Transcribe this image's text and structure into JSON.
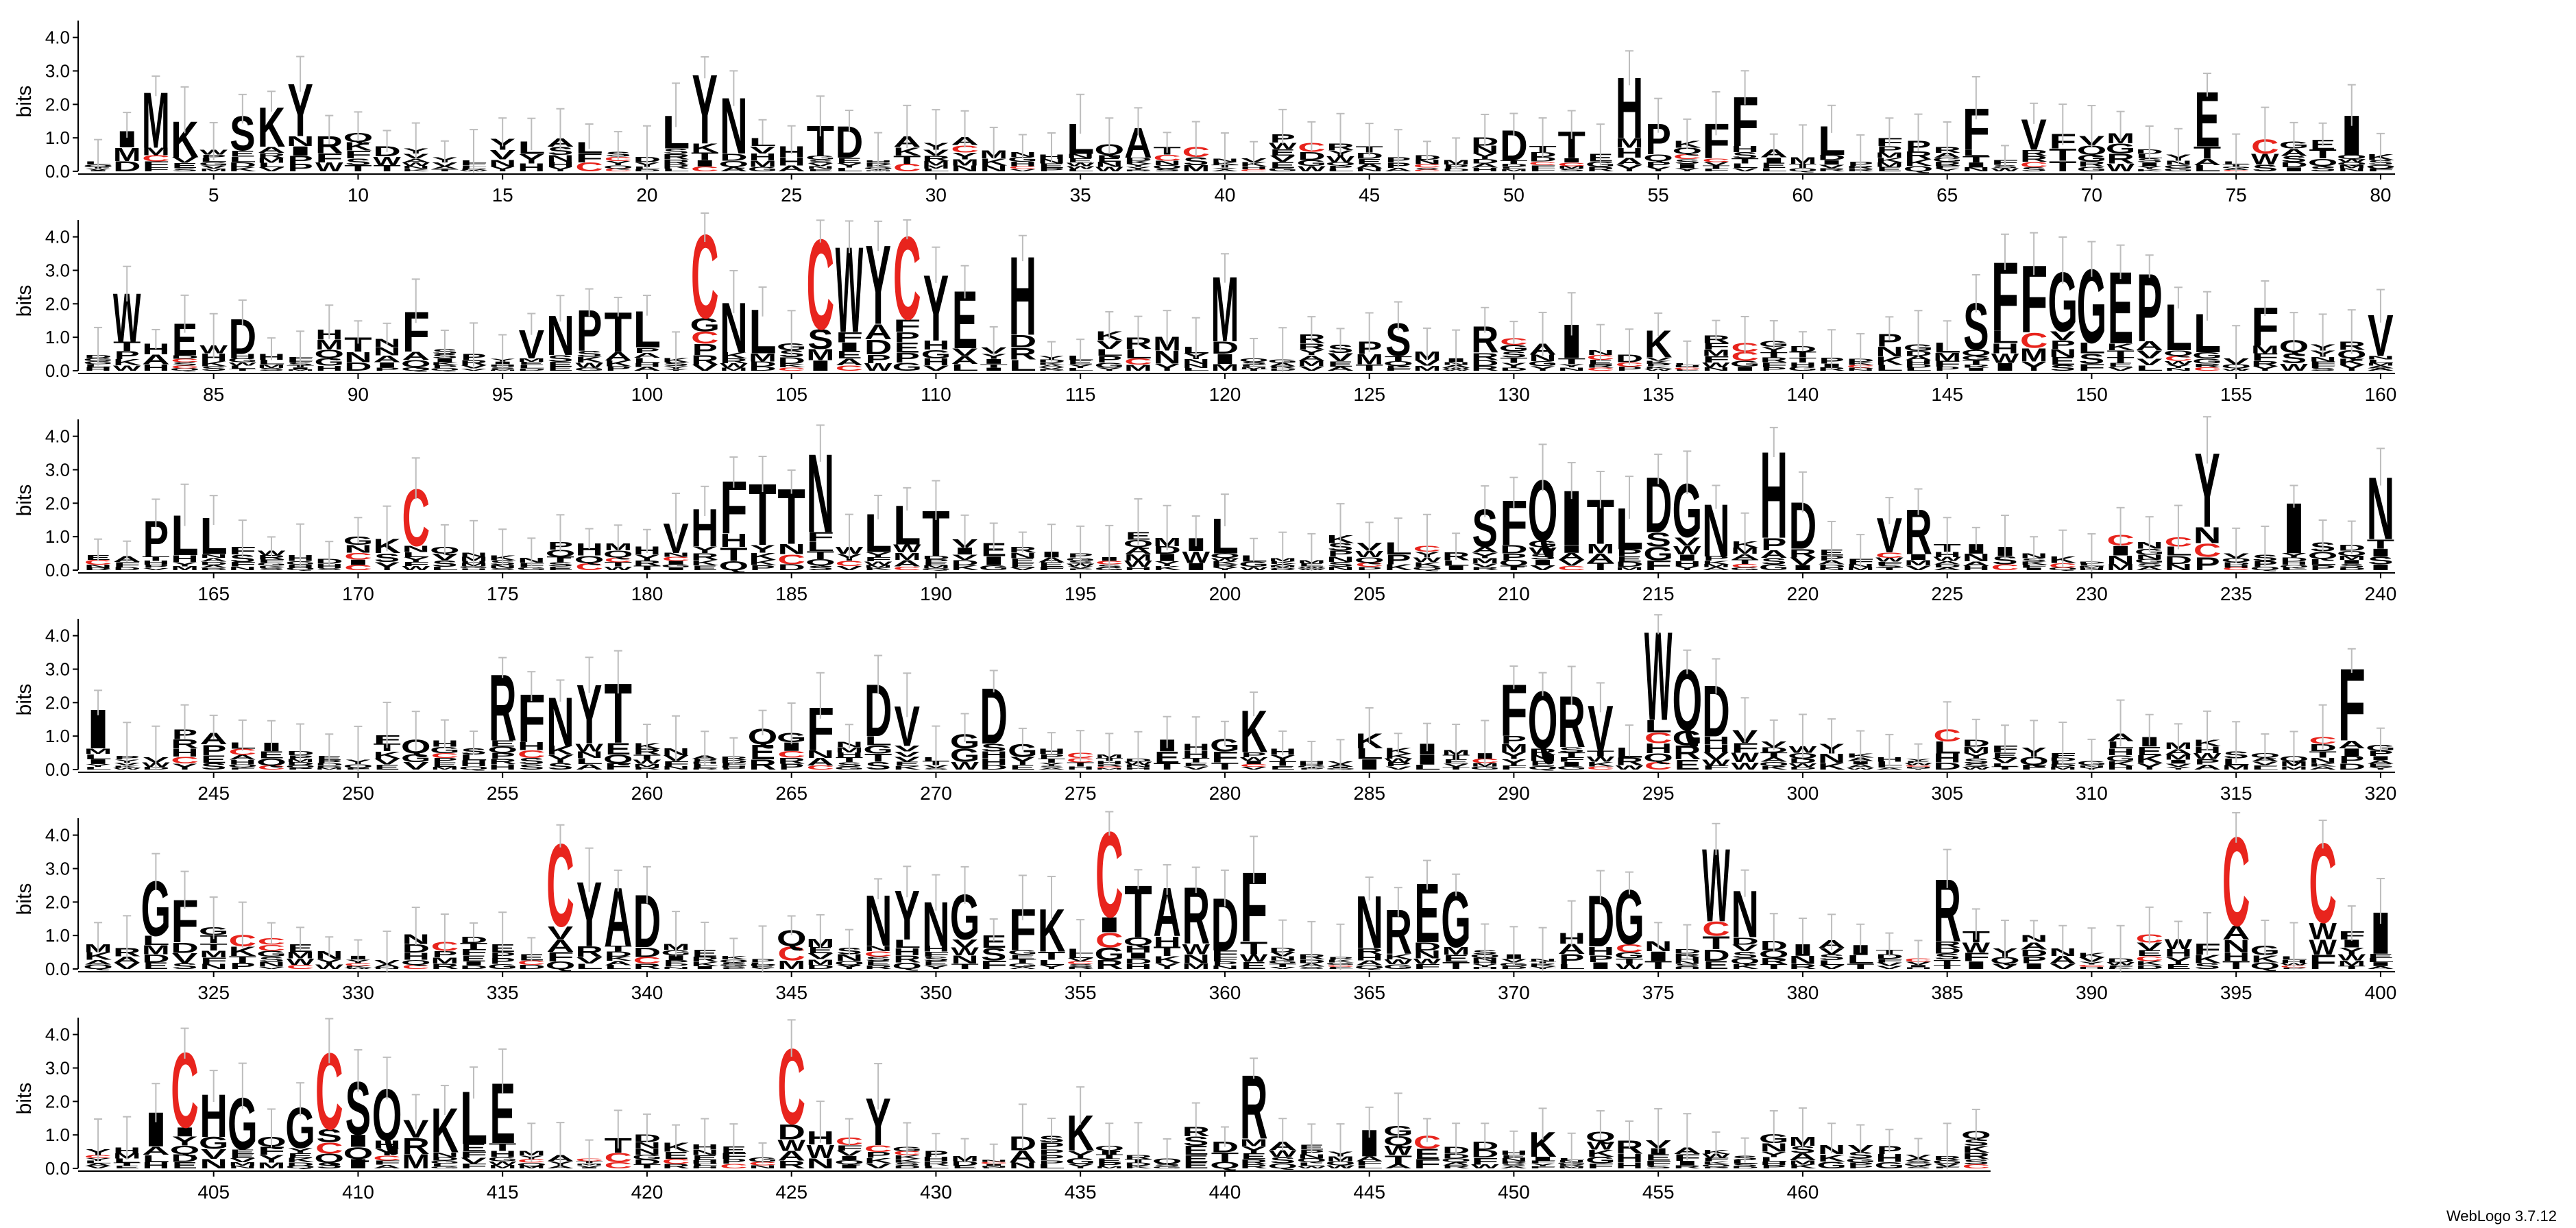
{
  "chart_data": {
    "type": "sequence-logo",
    "ylabel": "bits",
    "ylim": [
      0,
      4.3
    ],
    "yticks": [
      "0.0",
      "1.0",
      "2.0",
      "3.0",
      "4.0"
    ],
    "credit": "WebLogo 3.7.12",
    "colors": {
      "cysteine": "#e8241d",
      "default": "#000000",
      "errorbar": "#bdbdbd"
    },
    "positions": {
      "count": 466,
      "x_tick_step": 5
    },
    "rows": [
      {
        "start": 1,
        "end": 80,
        "xticks": [
          5,
          10,
          15,
          20,
          25,
          30,
          35,
          40,
          45,
          50,
          55,
          60,
          65,
          70,
          75,
          80
        ]
      },
      {
        "start": 81,
        "end": 160,
        "xticks": [
          85,
          90,
          95,
          100,
          105,
          110,
          115,
          120,
          125,
          130,
          135,
          140,
          145,
          150,
          155,
          160
        ]
      },
      {
        "start": 161,
        "end": 240,
        "xticks": [
          165,
          170,
          175,
          180,
          185,
          190,
          195,
          200,
          205,
          210,
          215,
          220,
          225,
          230,
          235,
          240
        ]
      },
      {
        "start": 241,
        "end": 320,
        "xticks": [
          245,
          250,
          255,
          260,
          265,
          270,
          275,
          280,
          285,
          290,
          295,
          300,
          305,
          310,
          315,
          320
        ]
      },
      {
        "start": 321,
        "end": 400,
        "xticks": [
          325,
          330,
          335,
          340,
          345,
          350,
          355,
          360,
          365,
          370,
          375,
          380,
          385,
          390,
          395,
          400
        ]
      },
      {
        "start": 401,
        "end": 466,
        "xticks": [
          405,
          410,
          415,
          420,
          425,
          430,
          435,
          440,
          445,
          450,
          455,
          460
        ]
      }
    ],
    "prominent_residues": [
      {
        "pos": 3,
        "letter": "M",
        "bits": 2.4
      },
      {
        "pos": 4,
        "letter": "K",
        "bits": 1.6
      },
      {
        "pos": 6,
        "letter": "S",
        "bits": 1.6
      },
      {
        "pos": 7,
        "letter": "K",
        "bits": 1.9
      },
      {
        "pos": 8,
        "letter": "Y",
        "bits": 2.6
      },
      {
        "pos": 21,
        "letter": "L",
        "bits": 1.6
      },
      {
        "pos": 22,
        "letter": "Y",
        "bits": 2.9
      },
      {
        "pos": 23,
        "letter": "N",
        "bits": 2.4
      },
      {
        "pos": 26,
        "letter": "T",
        "bits": 1.4
      },
      {
        "pos": 27,
        "letter": "D",
        "bits": 1.5
      },
      {
        "pos": 35,
        "letter": "L",
        "bits": 1.5
      },
      {
        "pos": 37,
        "letter": "A",
        "bits": 1.3
      },
      {
        "pos": 50,
        "letter": "D",
        "bits": 1.3
      },
      {
        "pos": 52,
        "letter": "T",
        "bits": 1.2
      },
      {
        "pos": 54,
        "letter": "H",
        "bits": 2.9
      },
      {
        "pos": 55,
        "letter": "P",
        "bits": 1.5
      },
      {
        "pos": 57,
        "letter": "F",
        "bits": 1.5
      },
      {
        "pos": 58,
        "letter": "F",
        "bits": 2.2
      },
      {
        "pos": 61,
        "letter": "L",
        "bits": 1.4
      },
      {
        "pos": 66,
        "letter": "F",
        "bits": 1.9
      },
      {
        "pos": 68,
        "letter": "V",
        "bits": 1.5
      },
      {
        "pos": 74,
        "letter": "E",
        "bits": 2.6
      },
      {
        "pos": 79,
        "letter": "I",
        "bits": 1.8
      },
      {
        "pos": 82,
        "letter": "W",
        "bits": 2.4
      },
      {
        "pos": 84,
        "letter": "E",
        "bits": 1.4
      },
      {
        "pos": 86,
        "letter": "D",
        "bits": 1.6
      },
      {
        "pos": 92,
        "letter": "F",
        "bits": 1.8
      },
      {
        "pos": 96,
        "letter": "V",
        "bits": 1.2
      },
      {
        "pos": 97,
        "letter": "N",
        "bits": 1.7
      },
      {
        "pos": 98,
        "letter": "P",
        "bits": 1.8
      },
      {
        "pos": 99,
        "letter": "T",
        "bits": 1.8
      },
      {
        "pos": 100,
        "letter": "L",
        "bits": 1.7
      },
      {
        "pos": 102,
        "letter": "C",
        "bits": 4.1
      },
      {
        "pos": 103,
        "letter": "N",
        "bits": 2.1
      },
      {
        "pos": 104,
        "letter": "L",
        "bits": 1.9
      },
      {
        "pos": 106,
        "letter": "C",
        "bits": 4.1
      },
      {
        "pos": 107,
        "letter": "W",
        "bits": 4.0
      },
      {
        "pos": 108,
        "letter": "Y",
        "bits": 3.8
      },
      {
        "pos": 109,
        "letter": "C",
        "bits": 4.1
      },
      {
        "pos": 110,
        "letter": "Y",
        "bits": 2.8
      },
      {
        "pos": 111,
        "letter": "E",
        "bits": 2.5
      },
      {
        "pos": 113,
        "letter": "H",
        "bits": 3.6
      },
      {
        "pos": 120,
        "letter": "M",
        "bits": 3.0
      },
      {
        "pos": 126,
        "letter": "S",
        "bits": 1.5
      },
      {
        "pos": 129,
        "letter": "R",
        "bits": 1.3
      },
      {
        "pos": 132,
        "letter": "I",
        "bits": 1.5
      },
      {
        "pos": 135,
        "letter": "K",
        "bits": 1.3
      },
      {
        "pos": 146,
        "letter": "S",
        "bits": 2.1
      },
      {
        "pos": 147,
        "letter": "F",
        "bits": 3.2
      },
      {
        "pos": 148,
        "letter": "F",
        "bits": 3.2
      },
      {
        "pos": 149,
        "letter": "G",
        "bits": 2.9
      },
      {
        "pos": 150,
        "letter": "G",
        "bits": 3.1
      },
      {
        "pos": 151,
        "letter": "E",
        "bits": 3.1
      },
      {
        "pos": 152,
        "letter": "P",
        "bits": 3.0
      },
      {
        "pos": 153,
        "letter": "L",
        "bits": 2.1
      },
      {
        "pos": 154,
        "letter": "L",
        "bits": 1.8
      },
      {
        "pos": 156,
        "letter": "F",
        "bits": 1.9
      },
      {
        "pos": 160,
        "letter": "V",
        "bits": 1.9
      },
      {
        "pos": 163,
        "letter": "P",
        "bits": 1.5
      },
      {
        "pos": 164,
        "letter": "L",
        "bits": 1.7
      },
      {
        "pos": 165,
        "letter": "L",
        "bits": 1.6
      },
      {
        "pos": 172,
        "letter": "C",
        "bits": 2.5
      },
      {
        "pos": 181,
        "letter": "V",
        "bits": 1.4
      },
      {
        "pos": 182,
        "letter": "H",
        "bits": 1.8
      },
      {
        "pos": 183,
        "letter": "F",
        "bits": 2.6
      },
      {
        "pos": 184,
        "letter": "T",
        "bits": 2.6
      },
      {
        "pos": 185,
        "letter": "T",
        "bits": 2.4
      },
      {
        "pos": 186,
        "letter": "N",
        "bits": 3.5
      },
      {
        "pos": 188,
        "letter": "L",
        "bits": 1.8
      },
      {
        "pos": 189,
        "letter": "L",
        "bits": 1.9
      },
      {
        "pos": 190,
        "letter": "T",
        "bits": 1.9
      },
      {
        "pos": 200,
        "letter": "L",
        "bits": 1.6
      },
      {
        "pos": 209,
        "letter": "S",
        "bits": 1.8
      },
      {
        "pos": 210,
        "letter": "F",
        "bits": 2.2
      },
      {
        "pos": 211,
        "letter": "Q",
        "bits": 2.6
      },
      {
        "pos": 212,
        "letter": "I",
        "bits": 2.4
      },
      {
        "pos": 213,
        "letter": "T",
        "bits": 2.0
      },
      {
        "pos": 214,
        "letter": "L",
        "bits": 1.9
      },
      {
        "pos": 215,
        "letter": "D",
        "bits": 2.6
      },
      {
        "pos": 216,
        "letter": "G",
        "bits": 2.6
      },
      {
        "pos": 217,
        "letter": "N",
        "bits": 2.2
      },
      {
        "pos": 219,
        "letter": "H",
        "bits": 3.8
      },
      {
        "pos": 220,
        "letter": "D",
        "bits": 2.1
      },
      {
        "pos": 223,
        "letter": "V",
        "bits": 1.7
      },
      {
        "pos": 224,
        "letter": "R",
        "bits": 1.9
      },
      {
        "pos": 234,
        "letter": "Y",
        "bits": 3.4
      },
      {
        "pos": 237,
        "letter": "I",
        "bits": 2.1
      },
      {
        "pos": 240,
        "letter": "N",
        "bits": 2.8
      },
      {
        "pos": 241,
        "letter": "I",
        "bits": 1.8
      },
      {
        "pos": 255,
        "letter": "R",
        "bits": 3.1
      },
      {
        "pos": 256,
        "letter": "F",
        "bits": 2.3
      },
      {
        "pos": 257,
        "letter": "N",
        "bits": 2.4
      },
      {
        "pos": 258,
        "letter": "Y",
        "bits": 2.5
      },
      {
        "pos": 259,
        "letter": "T",
        "bits": 2.6
      },
      {
        "pos": 266,
        "letter": "F",
        "bits": 1.9
      },
      {
        "pos": 268,
        "letter": "D",
        "bits": 2.4
      },
      {
        "pos": 269,
        "letter": "V",
        "bits": 1.9
      },
      {
        "pos": 272,
        "letter": "D",
        "bits": 2.4
      },
      {
        "pos": 281,
        "letter": "K",
        "bits": 1.9
      },
      {
        "pos": 290,
        "letter": "F",
        "bits": 2.5
      },
      {
        "pos": 291,
        "letter": "Q",
        "bits": 2.4
      },
      {
        "pos": 292,
        "letter": "R",
        "bits": 2.2
      },
      {
        "pos": 293,
        "letter": "V",
        "bits": 2.0
      },
      {
        "pos": 295,
        "letter": "W",
        "bits": 4.1
      },
      {
        "pos": 296,
        "letter": "Q",
        "bits": 2.9
      },
      {
        "pos": 297,
        "letter": "D",
        "bits": 2.5
      },
      {
        "pos": 319,
        "letter": "F",
        "bits": 3.1
      },
      {
        "pos": 323,
        "letter": "G",
        "bits": 2.6
      },
      {
        "pos": 324,
        "letter": "F",
        "bits": 2.1
      },
      {
        "pos": 337,
        "letter": "C",
        "bits": 4.0
      },
      {
        "pos": 338,
        "letter": "Y",
        "bits": 2.7
      },
      {
        "pos": 339,
        "letter": "A",
        "bits": 2.5
      },
      {
        "pos": 340,
        "letter": "D",
        "bits": 2.3
      },
      {
        "pos": 348,
        "letter": "N",
        "bits": 2.3
      },
      {
        "pos": 349,
        "letter": "Y",
        "bits": 2.3
      },
      {
        "pos": 350,
        "letter": "N",
        "bits": 2.1
      },
      {
        "pos": 351,
        "letter": "G",
        "bits": 2.2
      },
      {
        "pos": 353,
        "letter": "F",
        "bits": 1.8
      },
      {
        "pos": 354,
        "letter": "K",
        "bits": 1.9
      },
      {
        "pos": 356,
        "letter": "C",
        "bits": 4.0
      },
      {
        "pos": 357,
        "letter": "T",
        "bits": 2.5
      },
      {
        "pos": 358,
        "letter": "A",
        "bits": 2.4
      },
      {
        "pos": 359,
        "letter": "R",
        "bits": 2.4
      },
      {
        "pos": 360,
        "letter": "D",
        "bits": 2.3
      },
      {
        "pos": 361,
        "letter": "F",
        "bits": 3.1
      },
      {
        "pos": 365,
        "letter": "N",
        "bits": 2.2
      },
      {
        "pos": 366,
        "letter": "R",
        "bits": 1.9
      },
      {
        "pos": 367,
        "letter": "E",
        "bits": 2.6
      },
      {
        "pos": 368,
        "letter": "G",
        "bits": 2.5
      },
      {
        "pos": 373,
        "letter": "D",
        "bits": 2.2
      },
      {
        "pos": 374,
        "letter": "G",
        "bits": 2.4
      },
      {
        "pos": 377,
        "letter": "W",
        "bits": 3.5
      },
      {
        "pos": 378,
        "letter": "N",
        "bits": 2.3
      },
      {
        "pos": 385,
        "letter": "R",
        "bits": 2.6
      },
      {
        "pos": 395,
        "letter": "C",
        "bits": 4.0
      },
      {
        "pos": 398,
        "letter": "C",
        "bits": 3.9
      },
      {
        "pos": 400,
        "letter": "I",
        "bits": 1.8
      },
      {
        "pos": 403,
        "letter": "I",
        "bits": 1.6
      },
      {
        "pos": 404,
        "letter": "C",
        "bits": 3.6
      },
      {
        "pos": 405,
        "letter": "H",
        "bits": 2.1
      },
      {
        "pos": 406,
        "letter": "G",
        "bits": 2.2
      },
      {
        "pos": 408,
        "letter": "G",
        "bits": 1.8
      },
      {
        "pos": 409,
        "letter": "C",
        "bits": 3.5
      },
      {
        "pos": 410,
        "letter": "S",
        "bits": 2.5
      },
      {
        "pos": 411,
        "letter": "Q",
        "bits": 2.5
      },
      {
        "pos": 413,
        "letter": "K",
        "bits": 1.9
      },
      {
        "pos": 414,
        "letter": "L",
        "bits": 2.3
      },
      {
        "pos": 415,
        "letter": "E",
        "bits": 2.7
      },
      {
        "pos": 425,
        "letter": "C",
        "bits": 3.7
      },
      {
        "pos": 428,
        "letter": "Y",
        "bits": 2.1
      },
      {
        "pos": 435,
        "letter": "K",
        "bits": 1.6
      },
      {
        "pos": 441,
        "letter": "R",
        "bits": 2.8
      },
      {
        "pos": 445,
        "letter": "I",
        "bits": 1.3
      },
      {
        "pos": 451,
        "letter": "K",
        "bits": 1.2
      }
    ]
  }
}
